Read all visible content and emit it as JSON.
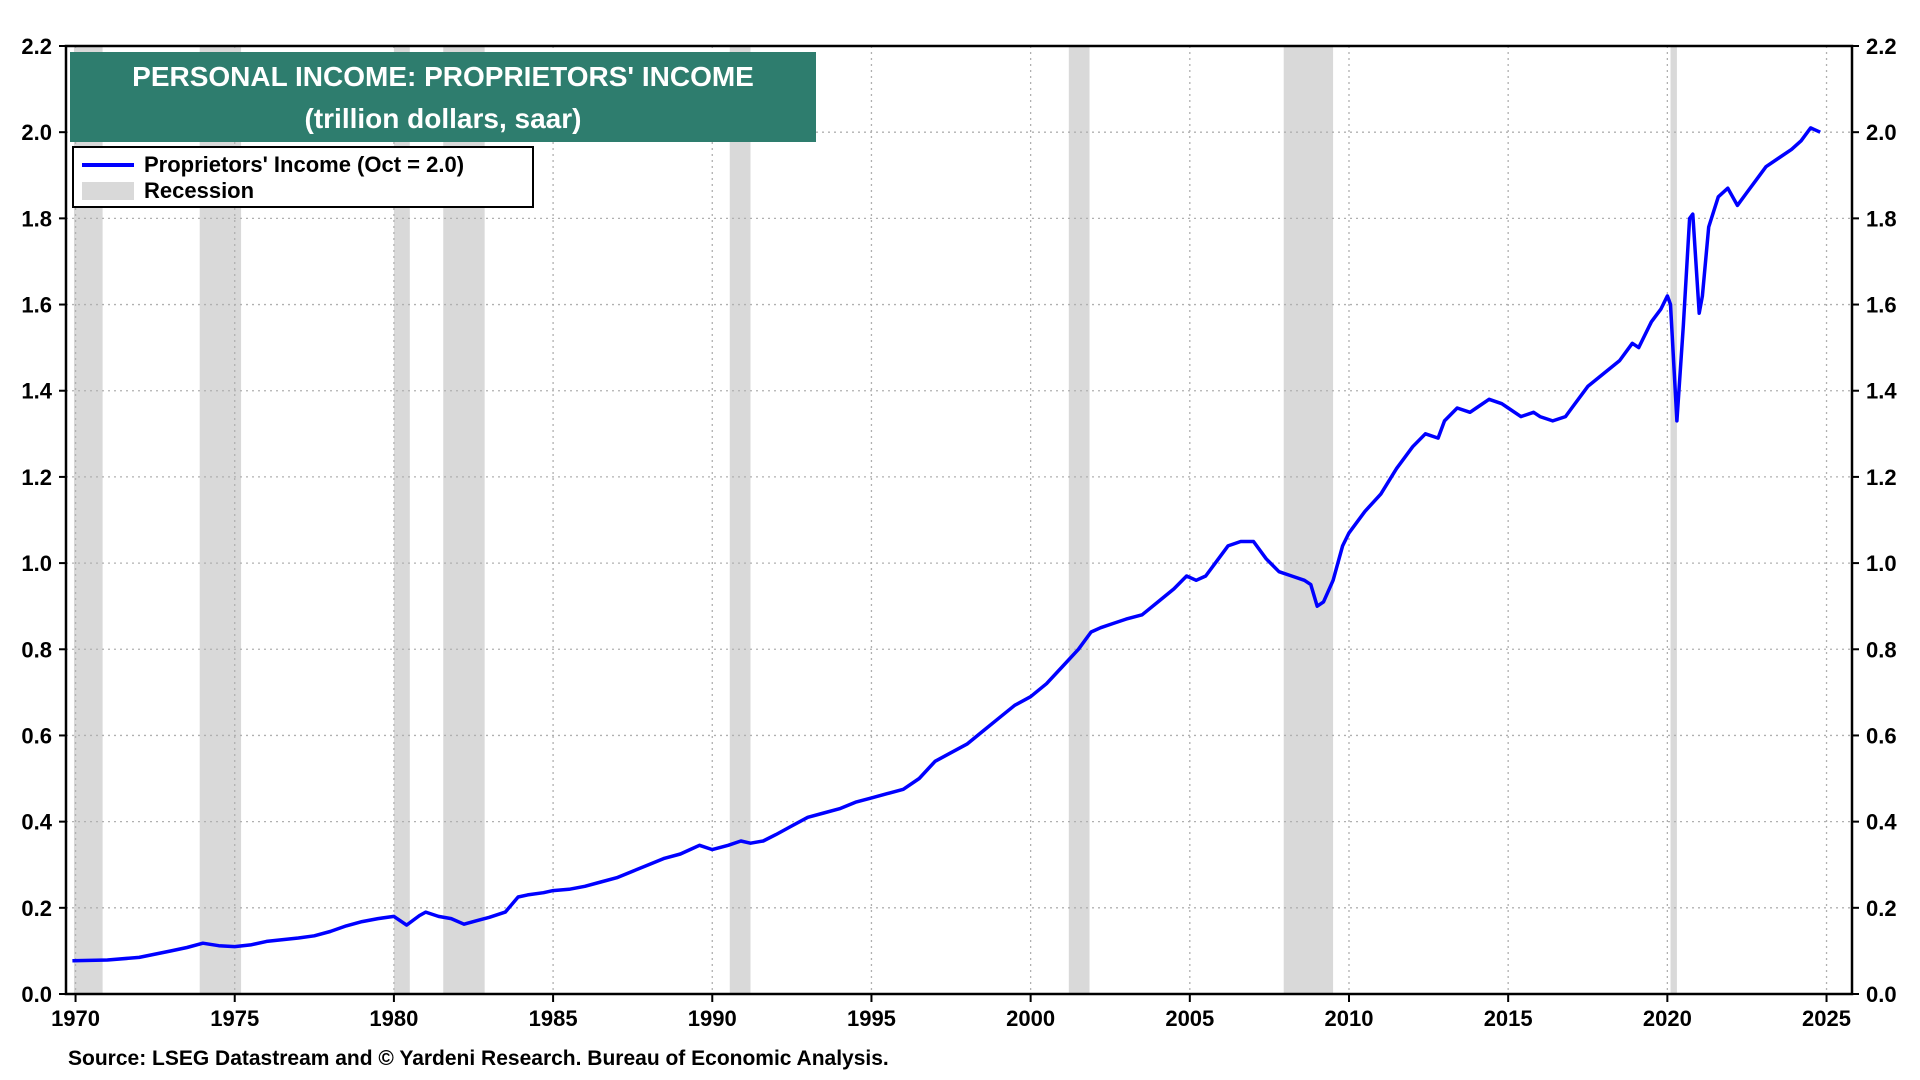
{
  "source_text": "Source: LSEG Datastream and © Yardeni Research. Bureau of Economic Analysis.",
  "chart_data": {
    "type": "line",
    "title": "PERSONAL INCOME: PROPRIETORS' INCOME",
    "subtitle": "(trillion dollars, saar)",
    "xlim": [
      1969.7,
      2025.8
    ],
    "ylim": [
      0.0,
      2.2
    ],
    "x_ticks": [
      1970,
      1975,
      1980,
      1985,
      1990,
      1995,
      2000,
      2005,
      2010,
      2015,
      2020,
      2025
    ],
    "y_ticks": [
      "0.0",
      "0.2",
      "0.4",
      "0.6",
      "0.8",
      "1.0",
      "1.2",
      "1.4",
      "1.6",
      "1.8",
      "2.0",
      "2.2"
    ],
    "grid": true,
    "legend_position": "top-left",
    "colors": {
      "series": "#0000ff",
      "recession": "#d9d9d9",
      "title_bg": "#2e7d6e"
    },
    "legend": {
      "series_label": "Proprietors' Income (Oct = 2.0)",
      "recession_label": "Recession"
    },
    "recessions": [
      [
        1969.95,
        1970.85
      ],
      [
        1973.9,
        1975.2
      ],
      [
        1980.0,
        1980.5
      ],
      [
        1981.55,
        1982.85
      ],
      [
        1990.55,
        1991.2
      ],
      [
        2001.2,
        2001.85
      ],
      [
        2007.95,
        2009.5
      ],
      [
        2020.1,
        2020.3
      ]
    ],
    "series": [
      {
        "name": "Proprietors' Income (Oct = 2.0)",
        "x": [
          1969.9,
          1971.0,
          1972.0,
          1973.0,
          1973.5,
          1974.0,
          1974.5,
          1975.0,
          1975.5,
          1976.0,
          1977.0,
          1977.5,
          1978.0,
          1978.5,
          1979.0,
          1979.5,
          1980.0,
          1980.4,
          1980.8,
          1981.0,
          1981.4,
          1981.8,
          1982.2,
          1982.6,
          1983.0,
          1983.5,
          1983.9,
          1984.2,
          1984.7,
          1985.0,
          1985.5,
          1986.0,
          1986.5,
          1987.0,
          1987.5,
          1988.0,
          1988.5,
          1989.0,
          1989.3,
          1989.6,
          1990.0,
          1990.5,
          1990.9,
          1991.2,
          1991.6,
          1992.0,
          1992.5,
          1993.0,
          1993.5,
          1994.0,
          1994.5,
          1995.0,
          1995.5,
          1996.0,
          1996.5,
          1997.0,
          1997.5,
          1998.0,
          1998.5,
          1999.0,
          1999.5,
          2000.0,
          2000.5,
          2001.0,
          2001.5,
          2001.9,
          2002.2,
          2002.6,
          2003.0,
          2003.5,
          2004.0,
          2004.5,
          2004.9,
          2005.2,
          2005.5,
          2005.8,
          2006.2,
          2006.6,
          2007.0,
          2007.4,
          2007.8,
          2008.2,
          2008.6,
          2008.8,
          2009.0,
          2009.2,
          2009.5,
          2009.8,
          2010.0,
          2010.5,
          2011.0,
          2011.5,
          2012.0,
          2012.4,
          2012.8,
          2013.0,
          2013.4,
          2013.8,
          2014.0,
          2014.4,
          2014.8,
          2015.0,
          2015.4,
          2015.8,
          2016.0,
          2016.4,
          2016.8,
          2017.0,
          2017.5,
          2018.0,
          2018.5,
          2018.9,
          2019.1,
          2019.5,
          2019.8,
          2020.0,
          2020.1,
          2020.3,
          2020.5,
          2020.7,
          2020.8,
          2021.0,
          2021.1,
          2021.3,
          2021.6,
          2021.9,
          2022.2,
          2022.5,
          2022.8,
          2023.1,
          2023.5,
          2023.9,
          2024.2,
          2024.5,
          2024.8
        ],
        "values": [
          0.077,
          0.079,
          0.085,
          0.1,
          0.108,
          0.118,
          0.112,
          0.11,
          0.114,
          0.122,
          0.13,
          0.135,
          0.145,
          0.158,
          0.168,
          0.175,
          0.18,
          0.16,
          0.182,
          0.19,
          0.18,
          0.175,
          0.162,
          0.17,
          0.178,
          0.19,
          0.225,
          0.23,
          0.235,
          0.24,
          0.243,
          0.25,
          0.26,
          0.27,
          0.285,
          0.3,
          0.315,
          0.325,
          0.335,
          0.345,
          0.335,
          0.345,
          0.355,
          0.35,
          0.355,
          0.37,
          0.39,
          0.41,
          0.42,
          0.43,
          0.445,
          0.455,
          0.465,
          0.475,
          0.5,
          0.54,
          0.56,
          0.58,
          0.61,
          0.64,
          0.67,
          0.69,
          0.72,
          0.76,
          0.8,
          0.84,
          0.85,
          0.86,
          0.87,
          0.88,
          0.91,
          0.94,
          0.97,
          0.96,
          0.97,
          1.0,
          1.04,
          1.05,
          1.05,
          1.01,
          0.98,
          0.97,
          0.96,
          0.95,
          0.9,
          0.91,
          0.96,
          1.04,
          1.07,
          1.12,
          1.16,
          1.22,
          1.27,
          1.3,
          1.29,
          1.33,
          1.36,
          1.35,
          1.36,
          1.38,
          1.37,
          1.36,
          1.34,
          1.35,
          1.34,
          1.33,
          1.34,
          1.36,
          1.41,
          1.44,
          1.47,
          1.51,
          1.5,
          1.56,
          1.59,
          1.62,
          1.6,
          1.33,
          1.55,
          1.8,
          1.81,
          1.58,
          1.62,
          1.78,
          1.85,
          1.87,
          1.83,
          1.86,
          1.89,
          1.92,
          1.94,
          1.96,
          1.98,
          2.01,
          2.0
        ]
      }
    ]
  }
}
